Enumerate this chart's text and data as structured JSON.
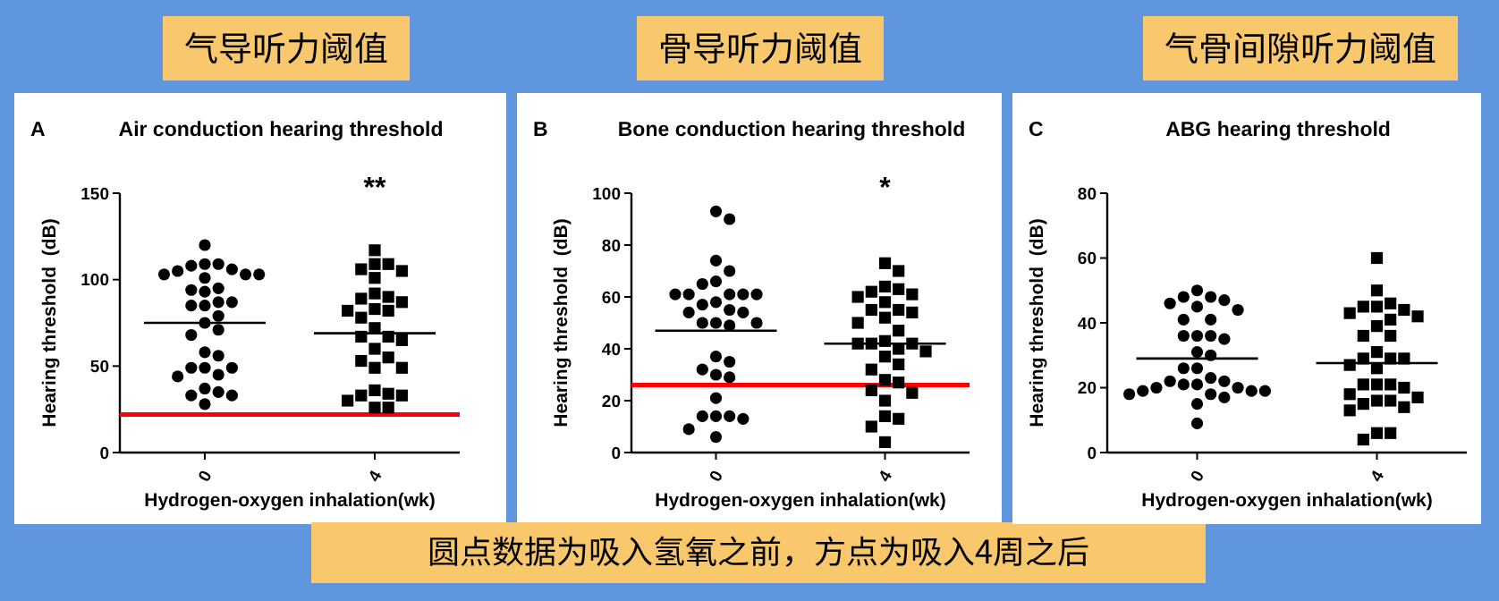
{
  "chart_data": [
    {
      "type": "scatter",
      "title": "气导听力阈值",
      "subtitle": "Air conduction hearing threshold",
      "xlabel": "Hydrogen-oxygen inhalation(wk)",
      "ylabel": "Hearing threshold  (dB)",
      "categories": [
        "0",
        "4"
      ],
      "ylim": [
        0,
        150
      ],
      "yticks": [
        0,
        50,
        100,
        150
      ],
      "annotations": [
        "A",
        "**"
      ],
      "ref_lines": [
        {
          "axis": "y",
          "value": 22,
          "color": "#ff0000"
        },
        {
          "axis": "y",
          "value": 75,
          "color": "#000000"
        },
        {
          "axis": "y",
          "value": 69,
          "color": "#000000"
        }
      ],
      "series": [
        {
          "type": "scatter",
          "marker": "circle",
          "color": "#000000",
          "x": [
            "0",
            "0",
            "0",
            "0",
            "0",
            "0",
            "0",
            "0",
            "0",
            "0",
            "0",
            "0",
            "0",
            "0",
            "0",
            "0",
            "0",
            "0",
            "0",
            "0",
            "0",
            "0",
            "0",
            "0",
            "0",
            "0",
            "0",
            "0",
            "0",
            "0",
            "0",
            "0",
            "0"
          ],
          "values": [
            120,
            109,
            109,
            108,
            106,
            105,
            103,
            103,
            103,
            101,
            95,
            94,
            93,
            87,
            87,
            85,
            85,
            79,
            75,
            71,
            68,
            58,
            56,
            49,
            49,
            49,
            45,
            44,
            37,
            35,
            33,
            33,
            28
          ]
        },
        {
          "type": "scatter",
          "marker": "square",
          "color": "#000000",
          "x": [
            "4",
            "4",
            "4",
            "4",
            "4",
            "4",
            "4",
            "4",
            "4",
            "4",
            "4",
            "4",
            "4",
            "4",
            "4",
            "4",
            "4",
            "4",
            "4",
            "4",
            "4",
            "4",
            "4",
            "4",
            "4",
            "4",
            "4",
            "4",
            "4",
            "4"
          ],
          "values": [
            117,
            109,
            109,
            106,
            105,
            101,
            92,
            90,
            89,
            87,
            83,
            82,
            82,
            78,
            72,
            67,
            67,
            65,
            60,
            55,
            53,
            49,
            49,
            36,
            34,
            33,
            33,
            30,
            26,
            26
          ]
        }
      ]
    },
    {
      "type": "scatter",
      "title": "骨导听力阈值",
      "subtitle": "Bone conduction hearing threshold",
      "xlabel": "Hydrogen-oxygen inhalation(wk)",
      "ylabel": "Hearing threshold  (dB)",
      "categories": [
        "0",
        "4"
      ],
      "ylim": [
        0,
        100
      ],
      "yticks": [
        0,
        20,
        40,
        60,
        80,
        100
      ],
      "annotations": [
        "B",
        "*",
        "圆点数据为吸入氢氧之前，方点为吸入4周之后"
      ],
      "ref_lines": [
        {
          "axis": "y",
          "value": 26,
          "color": "#ff0000"
        },
        {
          "axis": "y",
          "value": 47,
          "color": "#000000"
        },
        {
          "axis": "y",
          "value": 42,
          "color": "#000000"
        }
      ],
      "series": [
        {
          "type": "scatter",
          "marker": "circle",
          "color": "#000000",
          "x": [
            "0",
            "0",
            "0",
            "0",
            "0",
            "0",
            "0",
            "0",
            "0",
            "0",
            "0",
            "0",
            "0",
            "0",
            "0",
            "0",
            "0",
            "0",
            "0",
            "0",
            "0",
            "0",
            "0",
            "0",
            "0",
            "0",
            "0",
            "0",
            "0",
            "0",
            "0",
            "0"
          ],
          "values": [
            93,
            90,
            74,
            70,
            66,
            65,
            61,
            61,
            61,
            61,
            61,
            58,
            57,
            55,
            54,
            54,
            50,
            50,
            50,
            49,
            37,
            35,
            32,
            30,
            29,
            21,
            14,
            14,
            14,
            13,
            9,
            6
          ]
        },
        {
          "type": "scatter",
          "marker": "square",
          "color": "#000000",
          "x": [
            "4",
            "4",
            "4",
            "4",
            "4",
            "4",
            "4",
            "4",
            "4",
            "4",
            "4",
            "4",
            "4",
            "4",
            "4",
            "4",
            "4",
            "4",
            "4",
            "4",
            "4",
            "4",
            "4",
            "4",
            "4",
            "4",
            "4",
            "4",
            "4",
            "4",
            "4",
            "4"
          ],
          "values": [
            73,
            70,
            64,
            63,
            62,
            61,
            60,
            58,
            55,
            55,
            54,
            52,
            50,
            47,
            43,
            42,
            42,
            42,
            40,
            39,
            37,
            34,
            32,
            28,
            27,
            24,
            23,
            20,
            14,
            13,
            10,
            4
          ]
        }
      ]
    },
    {
      "type": "scatter",
      "title": "气骨间隙听力阈值",
      "subtitle": "ABG hearing threshold",
      "xlabel": "Hydrogen-oxygen inhalation(wk)",
      "ylabel": "Hearing threshold  (dB)",
      "categories": [
        "0",
        "4"
      ],
      "ylim": [
        0,
        80
      ],
      "yticks": [
        0,
        20,
        40,
        60,
        80
      ],
      "annotations": [
        "C"
      ],
      "ref_lines": [
        {
          "axis": "y",
          "value": 29,
          "color": "#000000"
        },
        {
          "axis": "y",
          "value": 27.6,
          "color": "#000000"
        }
      ],
      "series": [
        {
          "type": "scatter",
          "marker": "circle",
          "color": "#000000",
          "x": [
            "0",
            "0",
            "0",
            "0",
            "0",
            "0",
            "0",
            "0",
            "0",
            "0",
            "0",
            "0",
            "0",
            "0",
            "0",
            "0",
            "0",
            "0",
            "0",
            "0",
            "0",
            "0",
            "0",
            "0",
            "0",
            "0",
            "0",
            "0",
            "0",
            "0",
            "0",
            "0"
          ],
          "values": [
            50,
            48,
            48,
            47,
            46,
            45,
            44,
            41,
            41,
            36,
            36,
            36,
            35,
            31,
            30,
            26,
            26,
            23,
            22,
            22,
            21,
            21,
            20,
            20,
            19,
            19,
            19,
            18,
            18,
            17,
            15,
            9
          ]
        },
        {
          "type": "scatter",
          "marker": "square",
          "color": "#000000",
          "x": [
            "4",
            "4",
            "4",
            "4",
            "4",
            "4",
            "4",
            "4",
            "4",
            "4",
            "4",
            "4",
            "4",
            "4",
            "4",
            "4",
            "4",
            "4",
            "4",
            "4",
            "4",
            "4",
            "4",
            "4",
            "4",
            "4",
            "4",
            "4",
            "4",
            "4",
            "4",
            "4"
          ],
          "values": [
            60,
            50,
            46,
            45,
            45,
            44,
            43,
            42,
            41,
            39,
            36,
            36,
            31,
            29,
            29,
            29,
            27,
            26,
            21,
            21,
            21,
            20,
            18,
            17,
            16,
            16,
            15,
            14,
            13,
            6,
            6,
            4
          ]
        }
      ]
    }
  ]
}
